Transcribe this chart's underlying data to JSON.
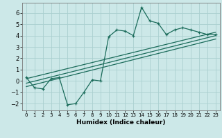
{
  "xlabel": "Humidex (Indice chaleur)",
  "ylabel": "",
  "background_color": "#cce8e8",
  "grid_color": "#aad0d0",
  "line_color": "#1a6b5a",
  "xlim": [
    -0.5,
    23.5
  ],
  "ylim": [
    -2.6,
    6.9
  ],
  "x_ticks": [
    0,
    1,
    2,
    3,
    4,
    5,
    6,
    7,
    8,
    9,
    10,
    11,
    12,
    13,
    14,
    15,
    16,
    17,
    18,
    19,
    20,
    21,
    22,
    23
  ],
  "y_ticks": [
    -2,
    -1,
    0,
    1,
    2,
    3,
    4,
    5,
    6
  ],
  "scatter_x": [
    0,
    1,
    2,
    3,
    4,
    5,
    6,
    7,
    8,
    9,
    10,
    11,
    12,
    13,
    14,
    15,
    16,
    17,
    18,
    19,
    20,
    21,
    22,
    23
  ],
  "scatter_y": [
    0.3,
    -0.6,
    -0.7,
    0.2,
    0.3,
    -2.1,
    -2.0,
    -1.0,
    0.1,
    0.0,
    3.9,
    4.5,
    4.4,
    4.0,
    6.5,
    5.3,
    5.1,
    4.1,
    4.5,
    4.7,
    4.5,
    4.3,
    4.1,
    4.1
  ],
  "line1_x": [
    0,
    23
  ],
  "line1_y": [
    -0.5,
    3.7
  ],
  "line2_x": [
    0,
    23
  ],
  "line2_y": [
    -0.2,
    4.0
  ],
  "line3_x": [
    0,
    23
  ],
  "line3_y": [
    0.2,
    4.3
  ]
}
